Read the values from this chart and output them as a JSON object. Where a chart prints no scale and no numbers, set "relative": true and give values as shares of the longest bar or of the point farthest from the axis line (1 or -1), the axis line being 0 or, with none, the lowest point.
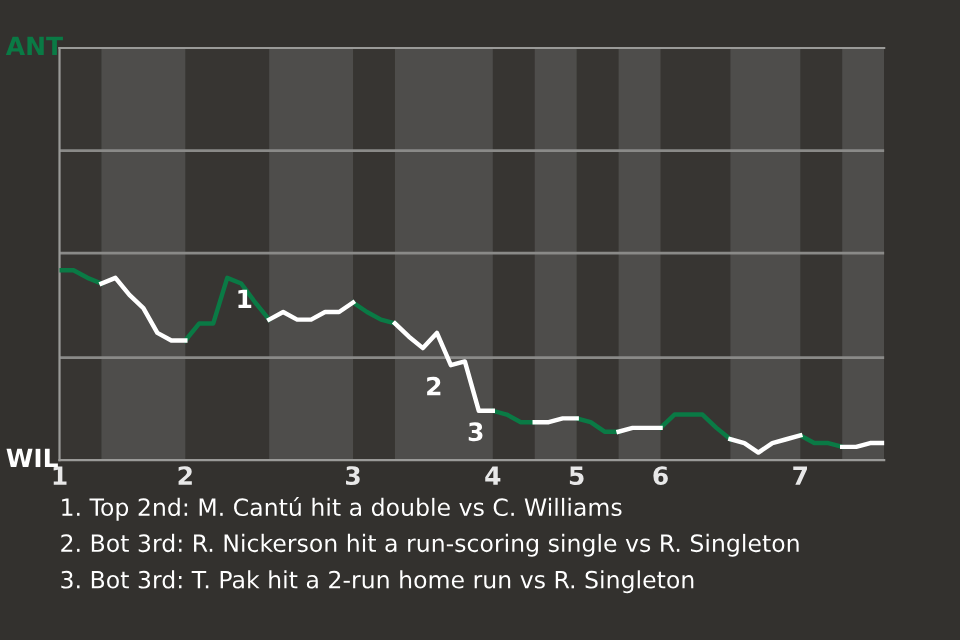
{
  "chart_data": {
    "type": "line",
    "relative": true,
    "categories": [
      "1",
      null,
      null,
      null,
      null,
      null,
      null,
      null,
      null,
      "2",
      null,
      null,
      null,
      null,
      null,
      null,
      null,
      null,
      null,
      null,
      null,
      "3",
      null,
      null,
      null,
      null,
      null,
      null,
      null,
      null,
      null,
      "4",
      null,
      null,
      null,
      null,
      null,
      "5",
      null,
      null,
      null,
      null,
      null,
      "6",
      null,
      null,
      null,
      null,
      null,
      null,
      null,
      null,
      null,
      "7",
      null,
      null,
      null,
      null,
      null,
      null
    ],
    "series": [
      {
        "color": "#0a7a45",
        "values": [
          1,
          1,
          0.96,
          0.93,
          null,
          null,
          null,
          null,
          null,
          0.63,
          0.72,
          0.72,
          0.96,
          0.93,
          0.83,
          0.74,
          null,
          null,
          null,
          null,
          null,
          0.83,
          0.78,
          0.74,
          0.72,
          null,
          null,
          null,
          null,
          null,
          null,
          0.26,
          0.24,
          0.2,
          0.2,
          null,
          null,
          0.22,
          0.2,
          0.15,
          0.15,
          null,
          null,
          0.17,
          0.24,
          0.24,
          0.24,
          0.17,
          0.11,
          null,
          null,
          null,
          null,
          0.13,
          0.09,
          0.09,
          0.07,
          null,
          null,
          null
        ]
      },
      {
        "color": "#ffffff",
        "values": [
          null,
          null,
          null,
          0.93,
          0.96,
          0.87,
          0.8,
          0.67,
          0.63,
          0.63,
          null,
          null,
          null,
          null,
          null,
          0.74,
          0.78,
          0.74,
          0.74,
          0.78,
          0.78,
          0.83,
          null,
          null,
          0.72,
          0.65,
          0.59,
          0.67,
          0.5,
          0.52,
          0.26,
          0.26,
          null,
          null,
          0.2,
          0.2,
          0.22,
          0.22,
          null,
          null,
          0.15,
          0.17,
          0.17,
          0.17,
          null,
          null,
          null,
          null,
          0.11,
          0.09,
          0.04,
          0.09,
          0.11,
          0.13,
          null,
          null,
          0.07,
          0.07,
          0.09,
          0.09
        ]
      }
    ],
    "legend": false,
    "marker": "none",
    "line_style": "solid",
    "ref_lines": [
      {
        "axis": "y",
        "value": 0.54,
        "color": "#8a8a88"
      },
      {
        "axis": "y",
        "value": 1.09,
        "color": "#8a8a88"
      },
      {
        "axis": "y",
        "value": 1.63,
        "color": "#8a8a88"
      }
    ],
    "annotations": [
      {
        "text": "1",
        "y": 0.96
      },
      {
        "text": "2",
        "y": 0.5
      },
      {
        "text": "3",
        "y": 0.26
      },
      "ANT",
      "WIL",
      "1. Top 2nd: M. Cantú hit a double vs C. Williams",
      "2. Bot 3rd: R. Nickerson hit a run-scoring single vs R. Singleton",
      "3. Bot 3rd: T. Pak hit a 2-run home run vs R. Singleton"
    ]
  }
}
